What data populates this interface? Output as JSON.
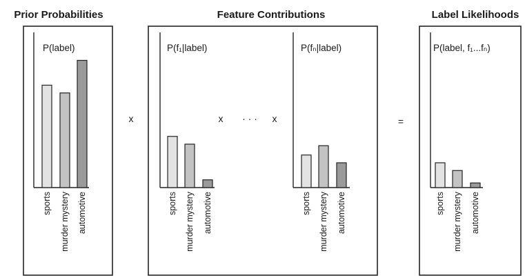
{
  "headings": {
    "prior": "Prior Probabilities",
    "features": "Feature Contributions",
    "likelihoods": "Label Likelihoods"
  },
  "operators": {
    "times_1": "x",
    "times_2": "x",
    "ellipsis": "· · ·",
    "times_3": "x",
    "equals": "="
  },
  "categories": [
    "sports",
    "murder mystery",
    "automotive"
  ],
  "bar_colors": [
    "#e3e3e3",
    "#c3c3c3",
    "#9a9a9a"
  ],
  "chart_data": [
    {
      "type": "bar",
      "title": "P(label)",
      "categories": [
        "sports",
        "murder mystery",
        "automotive"
      ],
      "values": [
        0.66,
        0.61,
        0.82
      ],
      "ylim": [
        0,
        1
      ]
    },
    {
      "type": "bar",
      "title": "P(f₁|label)",
      "categories": [
        "sports",
        "murder mystery",
        "automotive"
      ],
      "values": [
        0.33,
        0.28,
        0.05
      ],
      "ylim": [
        0,
        1
      ]
    },
    {
      "type": "bar",
      "title": "P(fₙ|label)",
      "categories": [
        "sports",
        "murder mystery",
        "automotive"
      ],
      "values": [
        0.21,
        0.27,
        0.16
      ],
      "ylim": [
        0,
        1
      ]
    },
    {
      "type": "bar",
      "title": "P(label, f₁...fₙ)",
      "categories": [
        "sports",
        "murder mystery",
        "automotive"
      ],
      "values": [
        0.16,
        0.11,
        0.03
      ],
      "ylim": [
        0,
        1
      ]
    }
  ]
}
